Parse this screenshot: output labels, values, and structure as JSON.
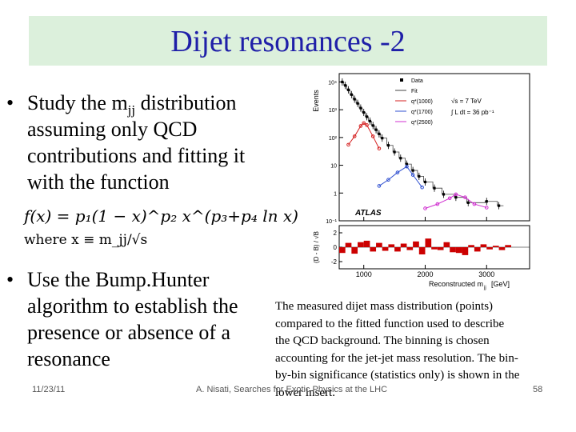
{
  "title": "Dijet resonances -2",
  "bullet1": {
    "lines": [
      "Study the m",
      "assuming only QCD",
      "contributions and fitting it",
      "with the function"
    ],
    "sub": "jj",
    "line1_rest": " distribution"
  },
  "formula": {
    "line1": "f(x) = p₁(1 − x)^p₂ x^(p₃+p₄ ln x)",
    "line2": "where  x ≡ m_jj/√s"
  },
  "bullet2": {
    "lines": [
      "Use the Bump.Hunter",
      "algorithm to establish the",
      "presence or absence of a",
      "resonance"
    ]
  },
  "caption": {
    "lines": [
      "The measured dijet mass distribution (points)",
      "compared to the fitted function used to describe",
      "the QCD background. The binning is chosen",
      "accounting for the jet-jet mass resolution. The bin-",
      "by-bin significance (statistics only) is shown in the",
      "lower insert."
    ]
  },
  "footer": {
    "date": "11/23/11",
    "center": "A. Nisati, Searches for Exotic Physics at the LHC",
    "page": "58"
  },
  "chart_data": {
    "type": "scatter",
    "ylabel": "Events",
    "xlabel": "Reconstructed m",
    "xlabel_sub": "jj",
    "xlabel_unit": "[GeV]",
    "yscale": "log",
    "x_ticks": [
      "1000",
      "2000",
      "3000"
    ],
    "y_ticks": [
      "10⁴",
      "10³",
      "10²",
      "10",
      "1",
      "10⁻¹"
    ],
    "ratio_ylabel": "(D - B) / √B",
    "ratio_ticks": [
      "2",
      "0",
      "-2"
    ],
    "legend": {
      "entries": [
        "Data",
        "Fit",
        "q*(1000)",
        "q*(1700)",
        "q*(2500)"
      ],
      "energy": "√s = 7 TeV",
      "lumi": "∫ L dt = 36 pb⁻¹"
    },
    "experiment_label": "ATLAS",
    "xlim": [
      600,
      3700
    ],
    "ylim": [
      0.1,
      20000
    ],
    "data": {
      "x": [
        650,
        700,
        750,
        800,
        850,
        900,
        950,
        1000,
        1050,
        1100,
        1150,
        1200,
        1250,
        1300,
        1400,
        1500,
        1600,
        1700,
        1800,
        1900,
        2000,
        2150,
        2300,
        2500,
        2700,
        3000,
        3200
      ],
      "y": [
        10000,
        7500,
        5200,
        3500,
        2400,
        1700,
        1150,
        800,
        560,
        390,
        270,
        190,
        135,
        95,
        52,
        30,
        18,
        11,
        6.5,
        4,
        2.5,
        1.5,
        0.9,
        0.7,
        0.45,
        0.5,
        0.35
      ]
    },
    "signals": [
      {
        "name": "q*(1000)",
        "color": "#d42020",
        "x": [
          750,
          850,
          950,
          1000,
          1050,
          1150,
          1250
        ],
        "y": [
          55,
          110,
          260,
          330,
          280,
          110,
          40
        ]
      },
      {
        "name": "q*(1700)",
        "color": "#3050d0",
        "x": [
          1250,
          1400,
          1550,
          1700,
          1800,
          1950
        ],
        "y": [
          1.8,
          3,
          5.5,
          9,
          4.5,
          1.6
        ]
      },
      {
        "name": "q*(2500)",
        "color": "#d030d0",
        "x": [
          2000,
          2200,
          2400,
          2500,
          2650,
          2800,
          3000
        ],
        "y": [
          0.28,
          0.4,
          0.65,
          0.9,
          0.7,
          0.4,
          0.3
        ]
      }
    ],
    "ratio": {
      "x": [
        650,
        750,
        850,
        950,
        1050,
        1150,
        1250,
        1350,
        1450,
        1550,
        1650,
        1750,
        1850,
        1950,
        2050,
        2150,
        2250,
        2350,
        2450,
        2550,
        2650,
        2750,
        2850,
        2950,
        3050,
        3150,
        3250,
        3350
      ],
      "y": [
        -0.8,
        0.6,
        -0.9,
        0.7,
        0.9,
        -0.6,
        0.6,
        -0.5,
        0.4,
        -0.6,
        0.5,
        -0.4,
        0.8,
        -1.0,
        1.2,
        -0.3,
        -0.4,
        0.7,
        -0.7,
        -0.8,
        -1.1,
        0.3,
        -0.6,
        0.4,
        -0.3,
        0.2,
        -0.4,
        0.3
      ]
    }
  }
}
